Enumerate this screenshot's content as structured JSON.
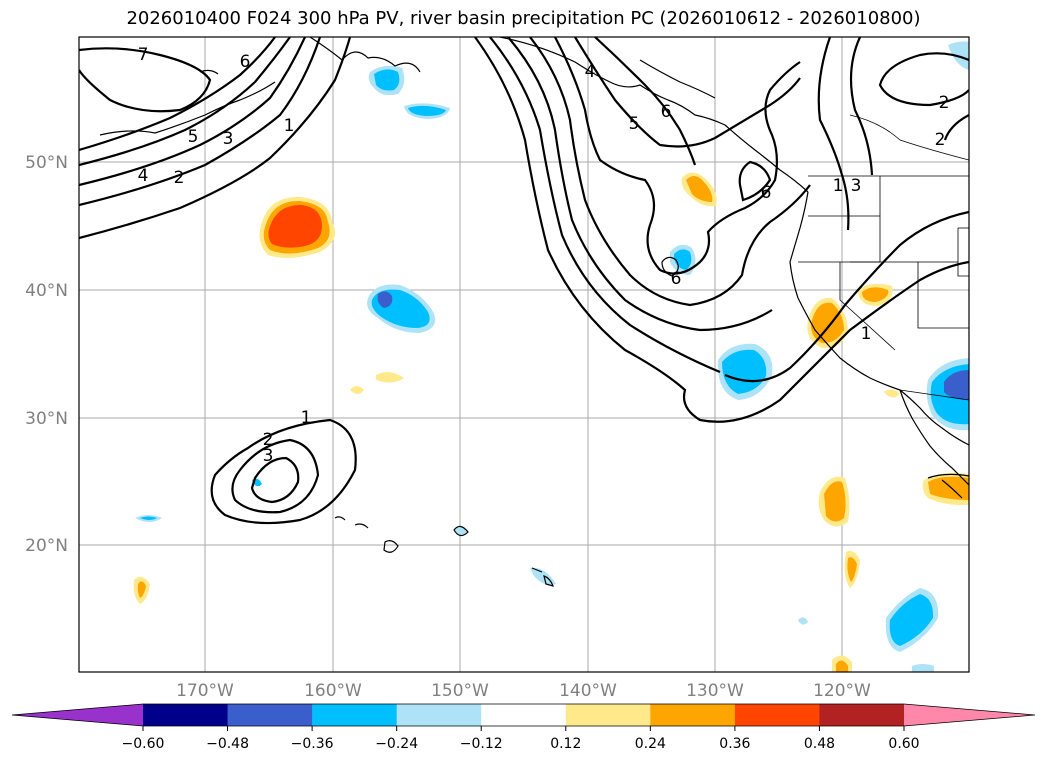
{
  "title": "2026010400 F024 300 hPa PV, river basin precipitation PC (2026010612 - 2026010800)",
  "lat_labels": [
    "50°N",
    "40°N",
    "30°N",
    "20°N"
  ],
  "lon_labels": [
    "170°W",
    "160°W",
    "150°W",
    "140°W",
    "130°W",
    "120°W"
  ],
  "contour_labels": [
    "7",
    "6",
    "5",
    "4",
    "3",
    "2",
    "1",
    "2",
    "3",
    "1",
    "4",
    "5",
    "6",
    "6",
    "6",
    "1",
    "3",
    "2",
    "2",
    "1"
  ],
  "colorbar": {
    "ticks": [
      "−0.60",
      "−0.48",
      "−0.36",
      "−0.24",
      "−0.12",
      "0.12",
      "0.24",
      "0.36",
      "0.48",
      "0.60"
    ],
    "colors": [
      "#9932cc",
      "#00008b",
      "#3a5fcd",
      "#00bfff",
      "#aee3f7",
      "#ffffff",
      "#ffe98a",
      "#ffa500",
      "#ff4500",
      "#b22222",
      "#ff88aa"
    ]
  }
}
